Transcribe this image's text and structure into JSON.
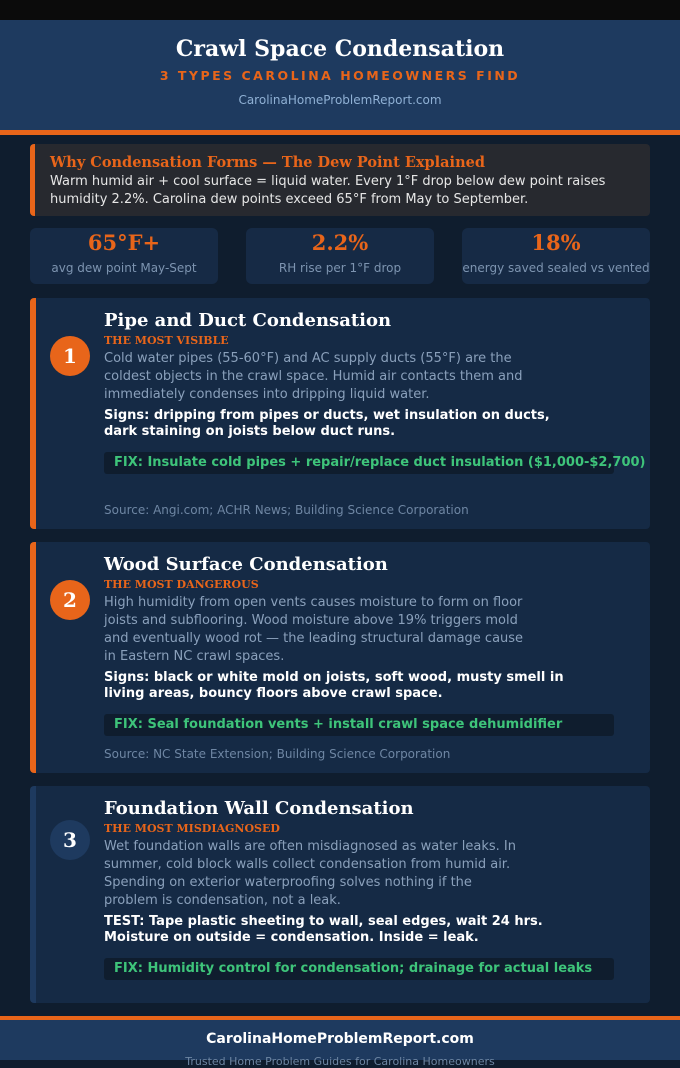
{
  "header": {
    "title": "Crawl Space Condensation",
    "subtitle": "3 TYPES CAROLINA HOMEOWNERS FIND",
    "site": "CarolinaHomeProblemReport.com"
  },
  "intro": {
    "heading": "Why Condensation Forms — The Dew Point Explained",
    "text": "Warm humid air + cool surface = liquid water. Every 1°F drop below dew point raises humidity 2.2%. Carolina dew points exceed 65°F from May to September."
  },
  "stats": [
    {
      "value": "65°F+",
      "label": "avg dew point May-Sept"
    },
    {
      "value": "2.2%",
      "label": "RH rise per 1°F drop"
    },
    {
      "value": "18%",
      "label": "energy saved sealed vs vented"
    }
  ],
  "cards": [
    {
      "number": 1,
      "title": "Pipe and Duct Condensation",
      "tag": "THE MOST VISIBLE",
      "body": "Cold water pipes (55-60°F) and AC supply ducts (55°F) are the coldest objects in the crawl space. Humid air contacts them and immediately condenses into dripping liquid water.",
      "signs": "Signs: dripping from pipes or ducts, wet insulation on ducts, dark staining on joists below duct runs.",
      "fix": "FIX: Insulate cold pipes + repair/replace duct insulation ($1,000-$2,700)",
      "source": "Source: Angi.com; ACHR News; Building Science Corporation"
    },
    {
      "number": 2,
      "title": "Wood Surface Condensation",
      "tag": "THE MOST DANGEROUS",
      "body": "High humidity from open vents causes moisture to form on floor joists and subflooring. Wood moisture above 19% triggers mold and eventually wood rot — the leading structural damage cause in Eastern NC crawl spaces.",
      "signs": "Signs: black or white mold on joists, soft wood, musty smell in living areas, bouncy floors above crawl space.",
      "fix": "FIX: Seal foundation vents + install crawl space dehumidifier",
      "source": "Source: NC State Extension; Building Science Corporation"
    },
    {
      "number": 3,
      "title": "Foundation Wall Condensation",
      "tag": "THE MOST MISDIAGNOSED",
      "body": "Wet foundation walls are often misdiagnosed as water leaks. In summer, cold block walls collect condensation from humid air. Spending on exterior waterproofing solves nothing if the problem is condensation, not a leak.",
      "signs": "TEST: Tape plastic sheeting to wall, seal edges, wait 24 hrs. Moisture on outside = condensation. Inside = leak.",
      "fix": "FIX: Humidity control for condensation; drainage for actual leaks"
    }
  ],
  "footer": {
    "site": "CarolinaHomeProblemReport.com",
    "tagline": "Trusted Home Problem Guides for Carolina Homeowners"
  }
}
